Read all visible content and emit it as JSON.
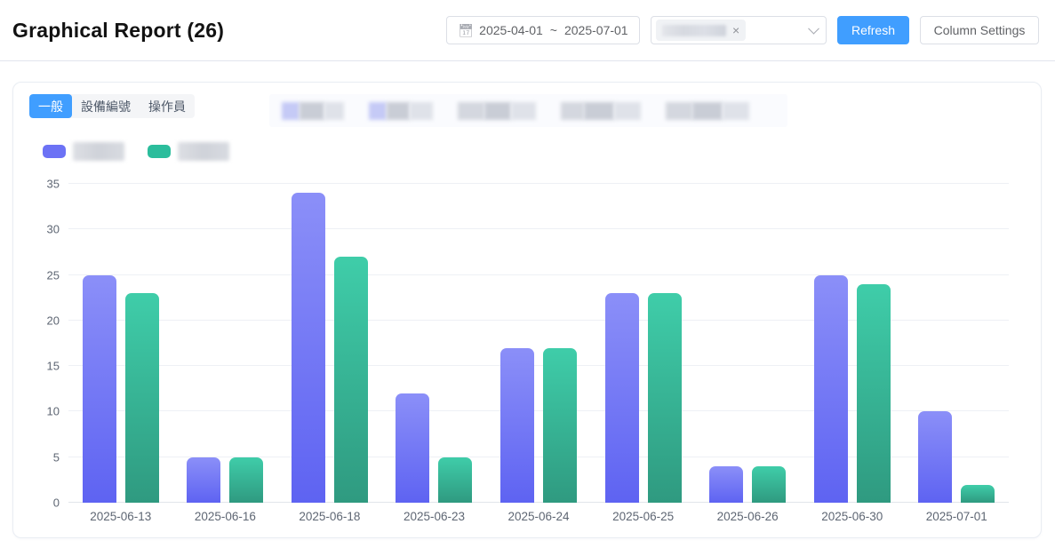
{
  "header": {
    "title": "Graphical Report (26)",
    "date_range": {
      "start": "2025-04-01",
      "separator": "~",
      "end": "2025-07-01"
    },
    "select": {
      "selected_tag": "(blurred)",
      "clear_icon": "×"
    },
    "refresh_label": "Refresh",
    "column_settings_label": "Column Settings"
  },
  "tabs": [
    {
      "label": "一般",
      "active": true
    },
    {
      "label": "設備編號",
      "active": false
    },
    {
      "label": "操作員",
      "active": false
    }
  ],
  "redacted_strip": {
    "note": "row of blurred filter labels",
    "groups": [
      {
        "accent_lead": true,
        "widths": [
          20,
          28,
          22
        ]
      },
      {
        "accent_lead": true,
        "widths": [
          20,
          26,
          26
        ]
      },
      {
        "accent_lead": false,
        "widths": [
          30,
          30,
          28
        ]
      },
      {
        "accent_lead": false,
        "widths": [
          26,
          34,
          30
        ]
      },
      {
        "accent_lead": false,
        "widths": [
          30,
          34,
          30
        ]
      }
    ]
  },
  "legend": [
    {
      "name": "series-1 (label blurred)",
      "color": "#6C72F5"
    },
    {
      "name": "series-2 (label blurred)",
      "color": "#2BBD9C"
    }
  ],
  "chart_data": {
    "type": "bar",
    "title": "",
    "xlabel": "",
    "ylabel": "",
    "categories": [
      "2025-06-13",
      "2025-06-16",
      "2025-06-18",
      "2025-06-23",
      "2025-06-24",
      "2025-06-25",
      "2025-06-26",
      "2025-06-30",
      "2025-07-01"
    ],
    "series": [
      {
        "name": "series-1 (label blurred)",
        "color_top": "#8B8FF8",
        "color_bottom": "#5E63F2",
        "values": [
          25,
          5,
          34,
          12,
          17,
          23,
          4,
          25,
          10
        ]
      },
      {
        "name": "series-2 (label blurred)",
        "color_top": "#3FCDA9",
        "color_bottom": "#2F9A80",
        "values": [
          23,
          5,
          27,
          5,
          17,
          23,
          4,
          24,
          2
        ]
      }
    ],
    "ylim": [
      0,
      35
    ],
    "yticks": [
      0,
      5,
      10,
      15,
      20,
      25,
      30,
      35
    ],
    "grid": true,
    "legend_position": "top-left"
  },
  "colors": {
    "primary": "#409EFF",
    "grid": "#EEF0F5",
    "axis_text": "#5E6673",
    "card_border": "#E9EDF3"
  }
}
